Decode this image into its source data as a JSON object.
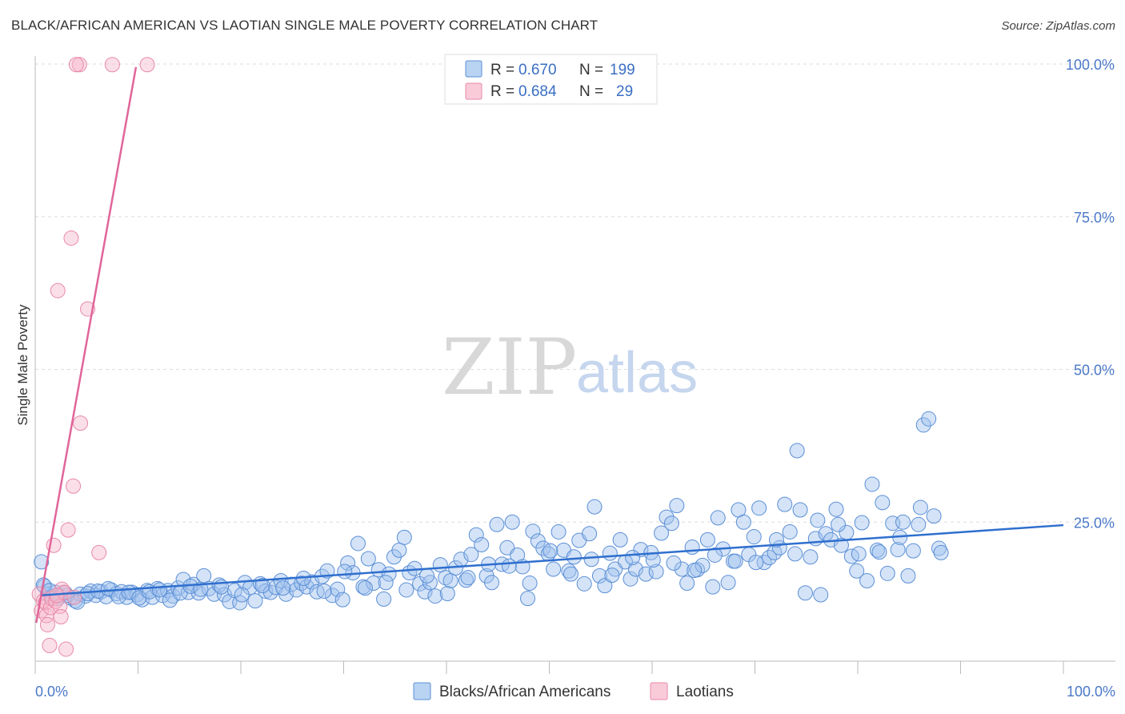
{
  "header": {
    "title": "BLACK/AFRICAN AMERICAN VS LAOTIAN SINGLE MALE POVERTY CORRELATION CHART",
    "source": "Source: ZipAtlas.com"
  },
  "watermark": {
    "zip": "ZIP",
    "atlas": "atlas"
  },
  "legend": {
    "rows": [
      {
        "r_label": "R = ",
        "r_value": "0.670",
        "n_label": "N = ",
        "n_value": "199"
      },
      {
        "r_label": "R = ",
        "r_value": "0.684",
        "n_label": "N = ",
        "n_value": "29"
      }
    ]
  },
  "bottom_legend": {
    "items": [
      {
        "label": "Blacks/African Americans"
      },
      {
        "label": "Laotians"
      }
    ]
  },
  "colors": {
    "blue_fill": "#9fc2ee",
    "blue_stroke": "#5b8fd6",
    "blue_line": "#2f6fce",
    "pink_fill": "#f6b8cb",
    "pink_stroke": "#e889a8",
    "pink_line": "#e0669a",
    "grid": "#dddddd",
    "axis_label": "#4a78c8"
  },
  "chart_data": {
    "type": "scatter",
    "title": "BLACK/AFRICAN AMERICAN VS LAOTIAN SINGLE MALE POVERTY CORRELATION CHART",
    "xlabel": "",
    "ylabel": "Single Male Poverty",
    "xlim": [
      0,
      105
    ],
    "ylim": [
      0,
      105
    ],
    "x_tick_labels": [
      "0.0%",
      "100.0%"
    ],
    "y_ticks": [
      25,
      50,
      75,
      100
    ],
    "y_tick_labels": [
      "25.0%",
      "50.0%",
      "75.0%",
      "100.0%"
    ],
    "series": [
      {
        "name": "Blacks/African Americans",
        "R": 0.67,
        "N": 199,
        "trend": {
          "x": [
            0.5,
            100
          ],
          "y": [
            13.0,
            24.5
          ]
        },
        "points": [
          [
            0.6,
            18.5
          ],
          [
            0.9,
            14.5
          ],
          [
            1.2,
            13.2
          ],
          [
            1.6,
            12.8
          ],
          [
            2.0,
            13.5
          ],
          [
            2.4,
            12.9
          ],
          [
            2.9,
            13.4
          ],
          [
            3.4,
            12.6
          ],
          [
            3.9,
            12.1
          ],
          [
            4.4,
            13.2
          ],
          [
            4.9,
            12.9
          ],
          [
            5.4,
            13.7
          ],
          [
            5.9,
            13.0
          ],
          [
            6.4,
            13.6
          ],
          [
            6.9,
            12.8
          ],
          [
            7.4,
            13.9
          ],
          [
            7.9,
            13.3
          ],
          [
            8.4,
            13.6
          ],
          [
            8.9,
            12.7
          ],
          [
            9.4,
            13.5
          ],
          [
            9.9,
            13.1
          ],
          [
            10.4,
            12.3
          ],
          [
            10.9,
            13.8
          ],
          [
            11.4,
            12.7
          ],
          [
            11.9,
            14.1
          ],
          [
            12.4,
            13.0
          ],
          [
            12.9,
            13.8
          ],
          [
            13.4,
            12.9
          ],
          [
            13.9,
            14.2
          ],
          [
            14.4,
            15.6
          ],
          [
            14.9,
            13.5
          ],
          [
            15.4,
            14.8
          ],
          [
            15.9,
            13.4
          ],
          [
            16.4,
            16.2
          ],
          [
            16.9,
            14.1
          ],
          [
            17.4,
            13.2
          ],
          [
            17.9,
            14.7
          ],
          [
            18.4,
            13.1
          ],
          [
            18.9,
            12.0
          ],
          [
            19.4,
            13.8
          ],
          [
            19.9,
            11.8
          ],
          [
            20.4,
            15.1
          ],
          [
            20.9,
            14.3
          ],
          [
            21.4,
            12.1
          ],
          [
            21.9,
            14.9
          ],
          [
            22.4,
            13.7
          ],
          [
            22.9,
            13.5
          ],
          [
            23.4,
            14.3
          ],
          [
            23.9,
            15.4
          ],
          [
            24.4,
            13.2
          ],
          [
            24.9,
            14.8
          ],
          [
            25.4,
            13.9
          ],
          [
            25.9,
            15.0
          ],
          [
            26.4,
            14.4
          ],
          [
            26.9,
            15.2
          ],
          [
            27.4,
            13.6
          ],
          [
            27.9,
            16.1
          ],
          [
            28.4,
            17.0
          ],
          [
            28.9,
            13.0
          ],
          [
            29.4,
            14.0
          ],
          [
            29.9,
            12.3
          ],
          [
            30.4,
            18.3
          ],
          [
            30.9,
            16.7
          ],
          [
            31.4,
            21.5
          ],
          [
            31.9,
            14.4
          ],
          [
            32.4,
            19.0
          ],
          [
            32.9,
            15.0
          ],
          [
            33.4,
            17.2
          ],
          [
            33.9,
            12.4
          ],
          [
            34.4,
            16.5
          ],
          [
            34.9,
            19.3
          ],
          [
            35.4,
            20.4
          ],
          [
            35.9,
            22.5
          ],
          [
            36.4,
            16.7
          ],
          [
            36.9,
            17.4
          ],
          [
            37.4,
            14.9
          ],
          [
            37.9,
            13.6
          ],
          [
            38.4,
            15.1
          ],
          [
            38.9,
            12.9
          ],
          [
            39.4,
            18.0
          ],
          [
            39.9,
            15.9
          ],
          [
            40.4,
            15.4
          ],
          [
            40.9,
            17.5
          ],
          [
            41.4,
            18.9
          ],
          [
            41.9,
            15.5
          ],
          [
            42.4,
            19.7
          ],
          [
            42.9,
            22.9
          ],
          [
            43.4,
            21.3
          ],
          [
            43.9,
            16.2
          ],
          [
            44.4,
            15.1
          ],
          [
            44.9,
            24.6
          ],
          [
            45.4,
            18.1
          ],
          [
            45.9,
            20.8
          ],
          [
            46.4,
            25.0
          ],
          [
            46.9,
            19.6
          ],
          [
            47.4,
            17.7
          ],
          [
            47.9,
            12.5
          ],
          [
            48.4,
            23.5
          ],
          [
            48.9,
            21.9
          ],
          [
            49.4,
            20.7
          ],
          [
            49.9,
            19.8
          ],
          [
            50.4,
            17.3
          ],
          [
            50.9,
            23.4
          ],
          [
            51.4,
            20.4
          ],
          [
            51.9,
            17.0
          ],
          [
            52.4,
            19.3
          ],
          [
            52.9,
            22.0
          ],
          [
            53.4,
            14.9
          ],
          [
            53.9,
            23.1
          ],
          [
            54.4,
            27.5
          ],
          [
            54.9,
            16.2
          ],
          [
            55.4,
            14.6
          ],
          [
            55.9,
            19.9
          ],
          [
            56.4,
            17.3
          ],
          [
            56.9,
            22.1
          ],
          [
            57.4,
            18.5
          ],
          [
            57.9,
            15.7
          ],
          [
            58.4,
            17.3
          ],
          [
            58.9,
            20.5
          ],
          [
            59.4,
            16.5
          ],
          [
            59.9,
            20.0
          ],
          [
            60.4,
            16.9
          ],
          [
            60.9,
            23.2
          ],
          [
            61.4,
            25.8
          ],
          [
            61.9,
            24.8
          ],
          [
            62.4,
            27.7
          ],
          [
            62.9,
            17.3
          ],
          [
            63.4,
            15.0
          ],
          [
            63.9,
            20.9
          ],
          [
            64.4,
            17.2
          ],
          [
            64.9,
            17.9
          ],
          [
            65.4,
            22.1
          ],
          [
            65.9,
            14.4
          ],
          [
            66.4,
            25.7
          ],
          [
            66.9,
            20.6
          ],
          [
            67.4,
            15.1
          ],
          [
            67.9,
            18.6
          ],
          [
            68.4,
            27.0
          ],
          [
            68.9,
            25.0
          ],
          [
            69.4,
            19.7
          ],
          [
            69.9,
            22.6
          ],
          [
            70.4,
            27.3
          ],
          [
            70.9,
            18.4
          ],
          [
            71.4,
            19.2
          ],
          [
            71.9,
            20.0
          ],
          [
            72.4,
            20.8
          ],
          [
            72.9,
            27.9
          ],
          [
            73.4,
            23.4
          ],
          [
            73.9,
            19.8
          ],
          [
            74.4,
            27.0
          ],
          [
            74.9,
            13.4
          ],
          [
            75.4,
            19.3
          ],
          [
            75.9,
            22.3
          ],
          [
            76.4,
            13.1
          ],
          [
            76.9,
            23.1
          ],
          [
            77.4,
            22.1
          ],
          [
            77.9,
            27.1
          ],
          [
            78.4,
            21.2
          ],
          [
            78.9,
            23.3
          ],
          [
            79.4,
            19.4
          ],
          [
            79.9,
            17.0
          ],
          [
            80.4,
            24.9
          ],
          [
            80.9,
            15.4
          ],
          [
            81.4,
            31.2
          ],
          [
            81.9,
            20.4
          ],
          [
            82.4,
            28.2
          ],
          [
            82.9,
            16.6
          ],
          [
            83.4,
            24.8
          ],
          [
            83.9,
            20.5
          ],
          [
            84.4,
            25.0
          ],
          [
            84.9,
            16.2
          ],
          [
            85.4,
            20.3
          ],
          [
            85.9,
            24.6
          ],
          [
            86.4,
            40.9
          ],
          [
            86.9,
            41.9
          ],
          [
            87.4,
            26.0
          ],
          [
            87.9,
            20.7
          ],
          [
            0.8,
            14.7
          ],
          [
            1.4,
            13.8
          ],
          [
            2.2,
            12.5
          ],
          [
            3.1,
            13.0
          ],
          [
            4.1,
            11.9
          ],
          [
            5.1,
            13.3
          ],
          [
            6.1,
            13.7
          ],
          [
            7.1,
            14.1
          ],
          [
            8.1,
            12.8
          ],
          [
            9.1,
            13.5
          ],
          [
            10.1,
            12.6
          ],
          [
            11.1,
            13.6
          ],
          [
            12.1,
            13.9
          ],
          [
            13.1,
            12.2
          ],
          [
            14.1,
            13.4
          ],
          [
            15.1,
            14.5
          ],
          [
            16.1,
            14.0
          ],
          [
            18.1,
            14.4
          ],
          [
            20.1,
            13.1
          ],
          [
            22.1,
            14.6
          ],
          [
            24.1,
            14.2
          ],
          [
            26.1,
            15.8
          ],
          [
            28.1,
            13.7
          ],
          [
            30.1,
            16.9
          ],
          [
            32.1,
            14.2
          ],
          [
            34.1,
            15.1
          ],
          [
            36.1,
            13.9
          ],
          [
            38.1,
            16.2
          ],
          [
            40.1,
            13.3
          ],
          [
            42.1,
            15.9
          ],
          [
            44.1,
            18.1
          ],
          [
            46.1,
            17.8
          ],
          [
            48.1,
            15.0
          ],
          [
            50.1,
            20.3
          ],
          [
            52.1,
            16.5
          ],
          [
            54.1,
            18.9
          ],
          [
            56.1,
            16.3
          ],
          [
            58.1,
            19.2
          ],
          [
            60.1,
            18.8
          ],
          [
            62.1,
            18.3
          ],
          [
            64.1,
            17.1
          ],
          [
            66.1,
            19.6
          ],
          [
            68.1,
            18.6
          ],
          [
            70.1,
            18.4
          ],
          [
            72.1,
            22.1
          ],
          [
            74.1,
            36.7
          ],
          [
            76.1,
            25.3
          ],
          [
            78.1,
            24.6
          ],
          [
            80.1,
            19.8
          ],
          [
            82.1,
            20.1
          ],
          [
            84.1,
            22.5
          ],
          [
            86.1,
            27.4
          ],
          [
            88.1,
            20.0
          ]
        ]
      },
      {
        "name": "Laotians",
        "R": 0.684,
        "N": 29,
        "trend": {
          "x": [
            0.1,
            9.8
          ],
          "y": [
            8.5,
            99.5
          ]
        },
        "points": [
          [
            0.4,
            13.2
          ],
          [
            0.6,
            10.5
          ],
          [
            0.8,
            12.1
          ],
          [
            1.0,
            11.8
          ],
          [
            1.1,
            9.7
          ],
          [
            1.2,
            8.2
          ],
          [
            1.4,
            4.8
          ],
          [
            1.5,
            11.0
          ],
          [
            1.6,
            12.5
          ],
          [
            1.8,
            21.2
          ],
          [
            2.0,
            12.0
          ],
          [
            2.2,
            62.9
          ],
          [
            2.4,
            11.2
          ],
          [
            2.6,
            14.0
          ],
          [
            2.8,
            13.5
          ],
          [
            3.0,
            4.2
          ],
          [
            2.1,
            13.0
          ],
          [
            2.5,
            9.5
          ],
          [
            3.2,
            23.7
          ],
          [
            3.5,
            71.5
          ],
          [
            3.7,
            30.9
          ],
          [
            3.8,
            12.7
          ],
          [
            4.4,
            41.2
          ],
          [
            4.3,
            99.9
          ],
          [
            4.0,
            99.9
          ],
          [
            5.1,
            59.9
          ],
          [
            6.2,
            20.0
          ],
          [
            7.5,
            99.9
          ],
          [
            10.9,
            99.9
          ]
        ]
      }
    ]
  }
}
